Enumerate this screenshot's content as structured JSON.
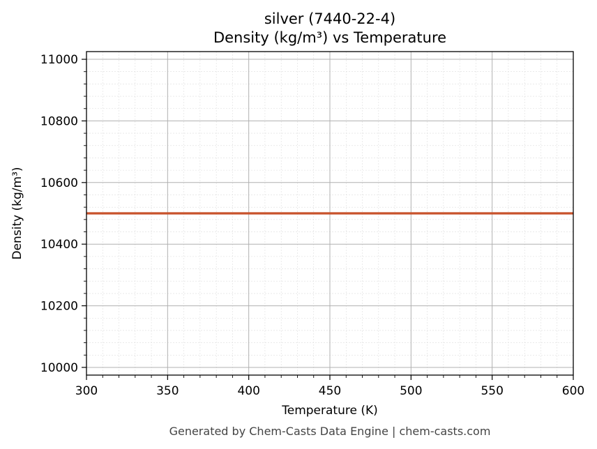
{
  "chart_data": {
    "type": "line",
    "title_line1": "silver (7440-22-4)",
    "title_line2": "Density (kg/m³) vs Temperature",
    "xlabel": "Temperature (K)",
    "ylabel": "Density (kg/m³)",
    "xlim": [
      300,
      600
    ],
    "ylim": [
      9975,
      11025
    ],
    "x_ticks": [
      300,
      350,
      400,
      450,
      500,
      550,
      600
    ],
    "y_ticks": [
      10000,
      10200,
      10400,
      10600,
      10800,
      11000
    ],
    "x_minor_step": 10,
    "y_minor_step": 40,
    "grid": true,
    "series": [
      {
        "color": "#c8522a",
        "x": [
          300,
          600
        ],
        "y": [
          10500,
          10500
        ]
      }
    ]
  },
  "footer": "Generated by Chem-Casts Data Engine | chem-casts.com"
}
